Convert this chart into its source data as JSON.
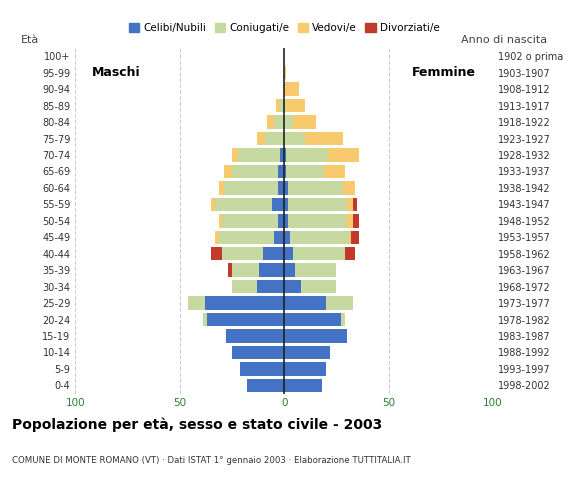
{
  "age_groups": [
    "0-4",
    "5-9",
    "10-14",
    "15-19",
    "20-24",
    "25-29",
    "30-34",
    "35-39",
    "40-44",
    "45-49",
    "50-54",
    "55-59",
    "60-64",
    "65-69",
    "70-74",
    "75-79",
    "80-84",
    "85-89",
    "90-94",
    "95-99",
    "100+"
  ],
  "birth_years": [
    "1998-2002",
    "1993-1997",
    "1988-1992",
    "1983-1987",
    "1978-1982",
    "1973-1977",
    "1968-1972",
    "1963-1967",
    "1958-1962",
    "1953-1957",
    "1948-1952",
    "1943-1947",
    "1938-1942",
    "1933-1937",
    "1928-1932",
    "1923-1927",
    "1918-1922",
    "1913-1917",
    "1908-1912",
    "1903-1907",
    "1902 o prima"
  ],
  "male": {
    "celibi": [
      18,
      21,
      25,
      28,
      37,
      38,
      13,
      12,
      10,
      5,
      3,
      6,
      3,
      3,
      2,
      0,
      0,
      0,
      0,
      0,
      0
    ],
    "coniugati": [
      0,
      0,
      0,
      0,
      2,
      8,
      12,
      13,
      20,
      26,
      27,
      27,
      26,
      22,
      20,
      9,
      5,
      2,
      0,
      0,
      0
    ],
    "vedovi": [
      0,
      0,
      0,
      0,
      0,
      0,
      0,
      0,
      0,
      2,
      1,
      2,
      2,
      4,
      3,
      4,
      3,
      2,
      0,
      0,
      0
    ],
    "divorziati": [
      0,
      0,
      0,
      0,
      0,
      0,
      0,
      2,
      5,
      0,
      0,
      0,
      0,
      0,
      0,
      0,
      0,
      0,
      0,
      0,
      0
    ]
  },
  "female": {
    "nubili": [
      18,
      20,
      22,
      30,
      27,
      20,
      8,
      5,
      4,
      3,
      2,
      2,
      2,
      1,
      1,
      0,
      0,
      0,
      0,
      0,
      0
    ],
    "coniugate": [
      0,
      0,
      0,
      0,
      2,
      13,
      17,
      20,
      25,
      28,
      28,
      28,
      26,
      18,
      20,
      10,
      4,
      1,
      0,
      0,
      0
    ],
    "vedove": [
      0,
      0,
      0,
      0,
      0,
      0,
      0,
      0,
      0,
      1,
      3,
      3,
      6,
      10,
      15,
      18,
      11,
      9,
      7,
      1,
      0
    ],
    "divorziate": [
      0,
      0,
      0,
      0,
      0,
      0,
      0,
      0,
      5,
      4,
      3,
      2,
      0,
      0,
      0,
      0,
      0,
      0,
      0,
      0,
      0
    ]
  },
  "colors": {
    "celibi": "#4472c4",
    "coniugati": "#c5d9a0",
    "vedovi": "#f8c96d",
    "divorziati": "#c0392b"
  },
  "title": "Popolazione per età, sesso e stato civile - 2003",
  "subtitle": "COMUNE DI MONTE ROMANO (VT) · Dati ISTAT 1° gennaio 2003 · Elaborazione TUTTITALIA.IT",
  "xlabel_left": "Maschi",
  "xlabel_right": "Femmine",
  "ylabel_left": "Età",
  "ylabel_right": "Anno di nascita",
  "legend_labels": [
    "Celibi/Nubili",
    "Coniugati/e",
    "Vedovi/e",
    "Divorziati/e"
  ],
  "xlim": 100,
  "background_color": "#ffffff",
  "grid_color": "#cccccc"
}
